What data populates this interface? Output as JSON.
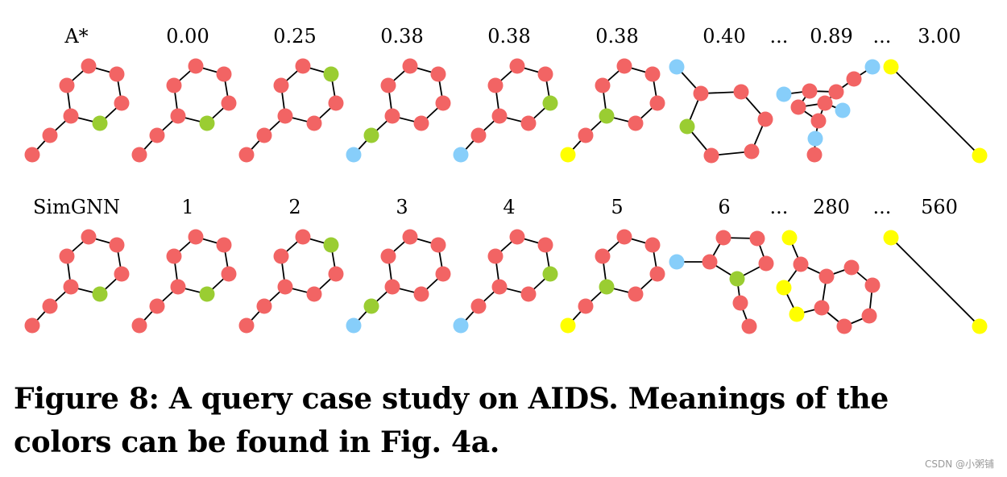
{
  "colors": {
    "red": "#f26464",
    "green": "#9acd32",
    "blue": "#87cefa",
    "yellow": "#ffff00",
    "edge": "#000000"
  },
  "rows": [
    {
      "name": "astar",
      "labels": [
        "A*",
        "0.00",
        "0.25",
        "0.38",
        "0.38",
        "0.38",
        "0.40",
        "...",
        "0.89",
        "...",
        "3.00"
      ]
    },
    {
      "name": "simgnn",
      "labels": [
        "SimGNN",
        "1",
        "2",
        "3",
        "4",
        "5",
        "6",
        "...",
        "280",
        "...",
        "560"
      ]
    }
  ],
  "caption": "Figure 8: A query case study on AIDS. Meanings of the colors can be found in Fig. 4a.",
  "watermark": "CSDN @小粥铺"
}
